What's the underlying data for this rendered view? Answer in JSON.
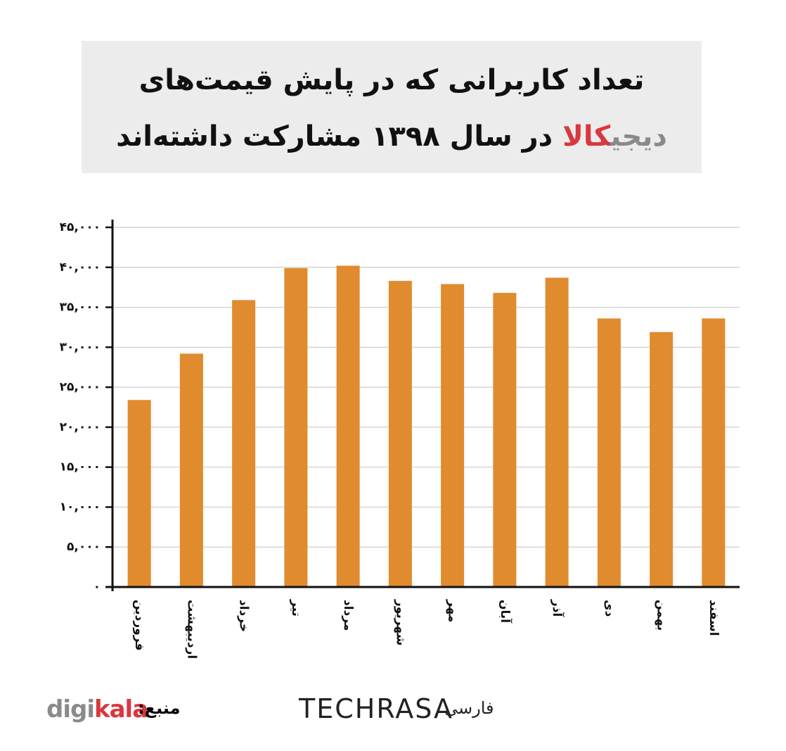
{
  "chart_data": {
    "type": "bar",
    "title": {
      "line1": "تعداد کاربرانی که در پایش قیمت‌های",
      "line2": [
        {
          "text": "دیجی",
          "color": "#8a8a8a"
        },
        {
          "text": "کالا",
          "color": "#d8383f"
        },
        {
          "text": " در سال ۱۳۹۸ مشارکت داشته‌اند",
          "color": "#111111"
        }
      ]
    },
    "categories": [
      "فروردین",
      "اردیبهشت",
      "خرداد",
      "تیر",
      "مرداد",
      "شهریور",
      "مهر",
      "آبان",
      "آذر",
      "دی",
      "بهمن",
      "اسفند"
    ],
    "values": [
      23400,
      29200,
      35900,
      39900,
      40200,
      38300,
      37900,
      36800,
      38700,
      33600,
      31900,
      33600
    ],
    "color": "#e08b2e",
    "ylim": [
      0,
      45000
    ],
    "yticks": [
      {
        "value": 0,
        "label": "۰"
      },
      {
        "value": 5000,
        "label": "۵,۰۰۰"
      },
      {
        "value": 10000,
        "label": "۱۰,۰۰۰"
      },
      {
        "value": 15000,
        "label": "۱۵,۰۰۰"
      },
      {
        "value": 20000,
        "label": "۲۰,۰۰۰"
      },
      {
        "value": 25000,
        "label": "۲۵,۰۰۰"
      },
      {
        "value": 30000,
        "label": "۳۰,۰۰۰"
      },
      {
        "value": 35000,
        "label": "۳۵,۰۰۰"
      },
      {
        "value": 40000,
        "label": "۴۰,۰۰۰"
      },
      {
        "value": 45000,
        "label": "۴۵,۰۰۰"
      }
    ],
    "grid": true
  },
  "footer": {
    "source_label": "منبع:",
    "source_logo": [
      {
        "text": "digi",
        "color": "#8a8a8a"
      },
      {
        "text": "kala",
        "color": "#d8383f"
      }
    ],
    "brand": "TECHRASA",
    "brand_sub": "فارسی"
  }
}
